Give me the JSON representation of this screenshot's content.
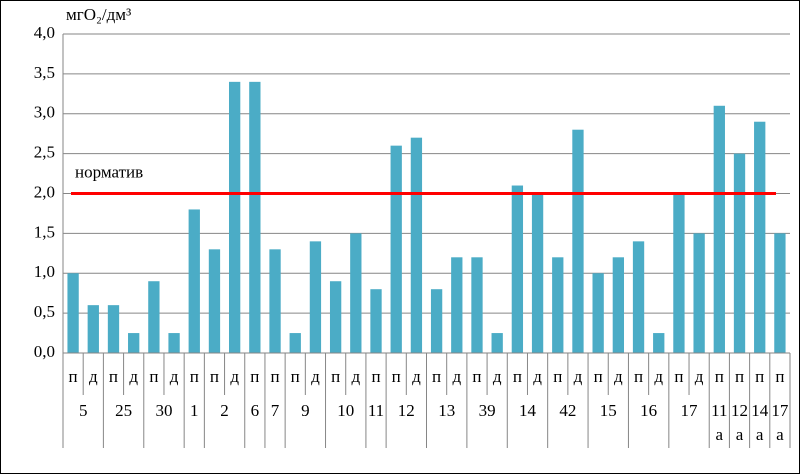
{
  "chart_data": {
    "type": "bar",
    "y_label": "мгO₂/дм³",
    "color": "#4bacc6",
    "ylim": [
      0,
      4
    ],
    "yticks": [
      {
        "value": 0,
        "label": "0,0"
      },
      {
        "value": 0.5,
        "label": "0,5"
      },
      {
        "value": 1,
        "label": "1,0"
      },
      {
        "value": 1.5,
        "label": "1,5"
      },
      {
        "value": 2,
        "label": "2,0"
      },
      {
        "value": 2.5,
        "label": "2,5"
      },
      {
        "value": 3,
        "label": "3,0"
      },
      {
        "value": 3.5,
        "label": "3,5"
      },
      {
        "value": 4,
        "label": "4,0"
      }
    ],
    "grid": true,
    "reference_line": {
      "value": 2,
      "label": "норматив",
      "color": "#ff0000"
    },
    "groups": [
      {
        "label": "5",
        "categories": [
          "п",
          "д"
        ],
        "values": [
          1.0,
          0.6
        ]
      },
      {
        "label": "25",
        "categories": [
          "п",
          "д"
        ],
        "values": [
          0.6,
          0.25
        ]
      },
      {
        "label": "30",
        "categories": [
          "п",
          "д"
        ],
        "values": [
          0.9,
          0.25
        ]
      },
      {
        "label": "1",
        "categories": [
          "п"
        ],
        "values": [
          1.8
        ]
      },
      {
        "label": "2",
        "categories": [
          "п",
          "д"
        ],
        "values": [
          1.3,
          3.4
        ]
      },
      {
        "label": "6",
        "categories": [
          "п"
        ],
        "values": [
          3.4
        ]
      },
      {
        "label": "7",
        "categories": [
          "п"
        ],
        "values": [
          1.3
        ]
      },
      {
        "label": "9",
        "categories": [
          "п",
          "д"
        ],
        "values": [
          0.25,
          1.4
        ]
      },
      {
        "label": "10",
        "categories": [
          "п",
          "д"
        ],
        "values": [
          0.9,
          1.5
        ]
      },
      {
        "label": "11",
        "categories": [
          "п"
        ],
        "values": [
          0.8
        ]
      },
      {
        "label": "12",
        "categories": [
          "п",
          "д"
        ],
        "values": [
          2.6,
          2.7
        ]
      },
      {
        "label": "13",
        "categories": [
          "п",
          "д"
        ],
        "values": [
          0.8,
          1.2
        ]
      },
      {
        "label": "39",
        "categories": [
          "п",
          "д"
        ],
        "values": [
          1.2,
          0.25
        ]
      },
      {
        "label": "14",
        "categories": [
          "п",
          "д"
        ],
        "values": [
          2.1,
          2.0
        ]
      },
      {
        "label": "42",
        "categories": [
          "п",
          "д"
        ],
        "values": [
          1.2,
          2.8
        ]
      },
      {
        "label": "15",
        "categories": [
          "п",
          "д"
        ],
        "values": [
          1.0,
          1.2
        ]
      },
      {
        "label": "16",
        "categories": [
          "п",
          "д"
        ],
        "values": [
          1.4,
          0.25
        ]
      },
      {
        "label": "17",
        "categories": [
          "п",
          "д"
        ],
        "values": [
          2.0,
          1.5
        ]
      },
      {
        "label": "11 а",
        "categories": [
          "п"
        ],
        "values": [
          3.1
        ]
      },
      {
        "label": "12 а",
        "categories": [
          "п"
        ],
        "values": [
          2.5
        ]
      },
      {
        "label": "14 а",
        "categories": [
          "п"
        ],
        "values": [
          2.9
        ]
      },
      {
        "label": "17 а",
        "categories": [
          "п"
        ],
        "values": [
          1.5
        ]
      }
    ]
  }
}
